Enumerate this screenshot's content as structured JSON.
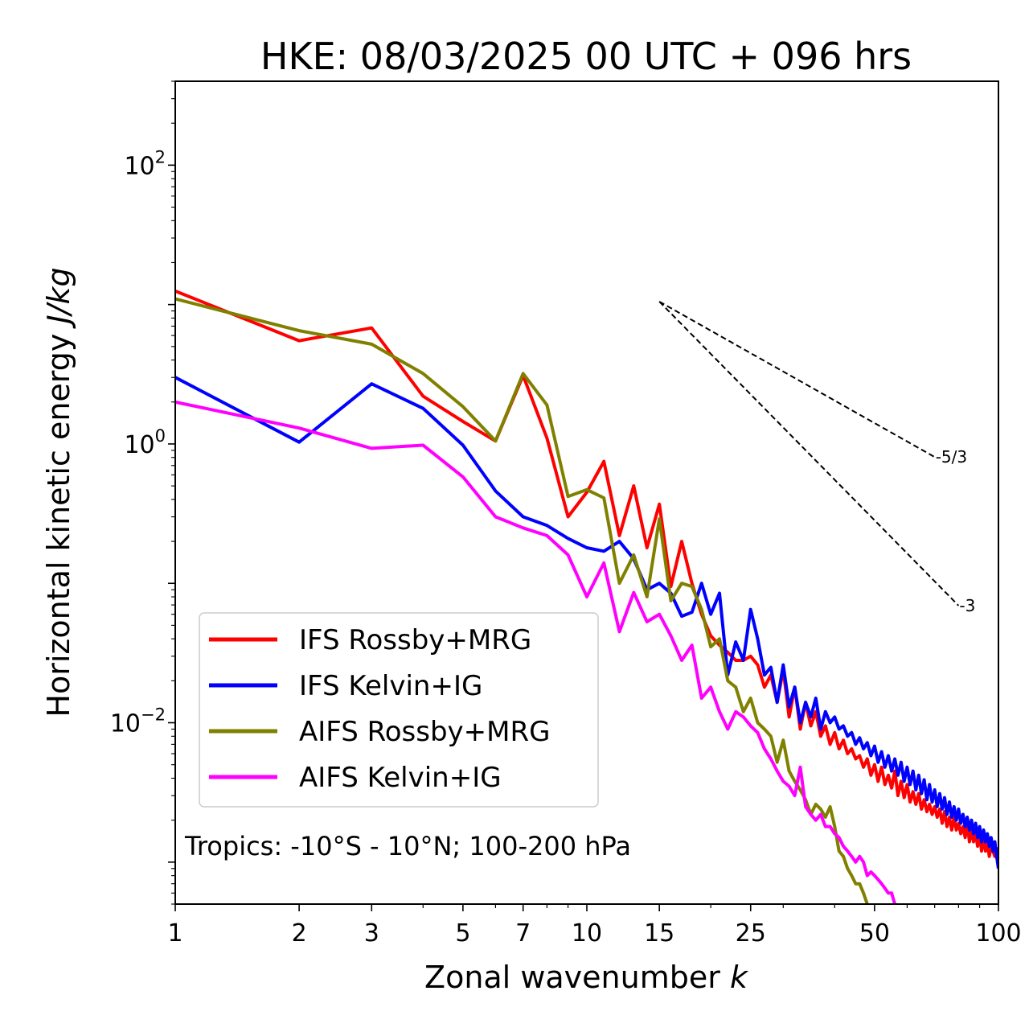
{
  "chart_data": {
    "type": "line",
    "title": "HKE: 08/03/2025 00 UTC + 096 hrs",
    "xlabel": "Zonal wavenumber",
    "xlabel_var": "k",
    "ylabel": "Horizontal kinetic energy",
    "ylabel_unit": "J/kg",
    "xscale": "log",
    "yscale": "log",
    "xlim": [
      1,
      100
    ],
    "ylim": [
      0.0005,
      400
    ],
    "xticks": [
      1,
      2,
      3,
      5,
      7,
      10,
      15,
      25,
      50,
      100
    ],
    "xtick_labels": [
      "1",
      "2",
      "3",
      "5",
      "7",
      "10",
      "15",
      "25",
      "50",
      "100"
    ],
    "yticks": [
      {
        "value": 100,
        "base": "10",
        "exp": "2"
      },
      {
        "value": 1,
        "base": "10",
        "exp": "0"
      },
      {
        "value": 0.01,
        "base": "10",
        "exp": "−2"
      }
    ],
    "legend_placement": "lower-left",
    "annotation": "Tropics: -10°S - 10°N; 100-200 hPa",
    "slopes": [
      {
        "label": "-5/3",
        "exponent": -1.6667,
        "k0": 15,
        "y0": 10.5,
        "k1": 70
      },
      {
        "label": "-3",
        "exponent": -3,
        "k0": 15,
        "y0": 10.5,
        "k1": 80
      }
    ],
    "series": [
      {
        "name": "IFS Rossby+MRG",
        "color": "#ff0000",
        "x": [
          1,
          2,
          3,
          4,
          5,
          6,
          7,
          8,
          9,
          10,
          11,
          12,
          13,
          14,
          15,
          16,
          17,
          18,
          19,
          20,
          21,
          22,
          23,
          24,
          25,
          26,
          27,
          28,
          29,
          30,
          31,
          32,
          33,
          34,
          35,
          36,
          37,
          38,
          39,
          40,
          41,
          42,
          43,
          44,
          45,
          46,
          47,
          48,
          49,
          50,
          51,
          52,
          53,
          54,
          55,
          56,
          57,
          58,
          59,
          60,
          61,
          62,
          63,
          64,
          65,
          66,
          67,
          68,
          69,
          70,
          71,
          72,
          73,
          74,
          75,
          76,
          77,
          78,
          79,
          80,
          81,
          82,
          83,
          84,
          85,
          86,
          87,
          88,
          89,
          90,
          91,
          92,
          93,
          94,
          95,
          96,
          97,
          98,
          99,
          100
        ],
        "y": [
          12.5,
          5.5,
          6.8,
          2.2,
          1.45,
          1.05,
          3.1,
          1.1,
          0.3,
          0.45,
          0.75,
          0.22,
          0.5,
          0.18,
          0.37,
          0.095,
          0.2,
          0.1,
          0.06,
          0.042,
          0.036,
          0.032,
          0.028,
          0.028,
          0.03,
          0.026,
          0.018,
          0.022,
          0.014,
          0.024,
          0.011,
          0.018,
          0.009,
          0.014,
          0.0095,
          0.012,
          0.008,
          0.0095,
          0.007,
          0.0085,
          0.0065,
          0.0075,
          0.006,
          0.0065,
          0.0055,
          0.0058,
          0.0048,
          0.0055,
          0.0042,
          0.005,
          0.0038,
          0.0048,
          0.0036,
          0.0042,
          0.0034,
          0.0045,
          0.003,
          0.0038,
          0.0029,
          0.0036,
          0.0027,
          0.0032,
          0.0026,
          0.0031,
          0.0024,
          0.0028,
          0.0023,
          0.0026,
          0.0022,
          0.0025,
          0.0021,
          0.0024,
          0.0019,
          0.0023,
          0.0018,
          0.0021,
          0.0017,
          0.0021,
          0.0017,
          0.0019,
          0.0016,
          0.0018,
          0.0015,
          0.0019,
          0.0014,
          0.0017,
          0.0014,
          0.0016,
          0.0013,
          0.0016,
          0.0012,
          0.0015,
          0.0012,
          0.0014,
          0.0011,
          0.0013,
          0.0012,
          0.0011,
          0.00125,
          0.0009
        ]
      },
      {
        "name": "IFS Kelvin+IG",
        "color": "#0000ff",
        "x": [
          1,
          2,
          3,
          4,
          5,
          6,
          7,
          8,
          9,
          10,
          11,
          12,
          13,
          14,
          15,
          16,
          17,
          18,
          19,
          20,
          21,
          22,
          23,
          24,
          25,
          26,
          27,
          28,
          29,
          30,
          31,
          32,
          33,
          34,
          35,
          36,
          37,
          38,
          39,
          40,
          41,
          42,
          43,
          44,
          45,
          46,
          47,
          48,
          49,
          50,
          51,
          52,
          53,
          54,
          55,
          56,
          57,
          58,
          59,
          60,
          61,
          62,
          63,
          64,
          65,
          66,
          67,
          68,
          69,
          70,
          71,
          72,
          73,
          74,
          75,
          76,
          77,
          78,
          79,
          80,
          81,
          82,
          83,
          84,
          85,
          86,
          87,
          88,
          89,
          90,
          91,
          92,
          93,
          94,
          95,
          96,
          97,
          98,
          99,
          100
        ],
        "y": [
          3.0,
          1.03,
          2.7,
          1.8,
          0.98,
          0.46,
          0.3,
          0.26,
          0.21,
          0.18,
          0.17,
          0.2,
          0.15,
          0.09,
          0.1,
          0.085,
          0.058,
          0.062,
          0.1,
          0.06,
          0.085,
          0.022,
          0.038,
          0.028,
          0.065,
          0.04,
          0.022,
          0.025,
          0.014,
          0.026,
          0.013,
          0.018,
          0.01,
          0.014,
          0.011,
          0.015,
          0.009,
          0.012,
          0.01,
          0.011,
          0.009,
          0.0095,
          0.008,
          0.0085,
          0.007,
          0.0078,
          0.0065,
          0.0072,
          0.0058,
          0.0068,
          0.0052,
          0.0062,
          0.0048,
          0.0058,
          0.0045,
          0.0055,
          0.0042,
          0.0052,
          0.0038,
          0.0048,
          0.0036,
          0.0045,
          0.0033,
          0.0042,
          0.0031,
          0.0039,
          0.0028,
          0.0036,
          0.0027,
          0.0033,
          0.0025,
          0.0031,
          0.0024,
          0.0029,
          0.0022,
          0.0027,
          0.0021,
          0.0025,
          0.002,
          0.0024,
          0.0019,
          0.0022,
          0.0018,
          0.0021,
          0.0017,
          0.002,
          0.0016,
          0.0019,
          0.0015,
          0.0018,
          0.0014,
          0.0017,
          0.0014,
          0.0016,
          0.0013,
          0.0015,
          0.0012,
          0.0014,
          0.0011,
          0.0009
        ]
      },
      {
        "name": "AIFS Rossby+MRG",
        "color": "#808000",
        "x": [
          1,
          2,
          3,
          4,
          5,
          6,
          7,
          8,
          9,
          10,
          11,
          12,
          13,
          14,
          15,
          16,
          17,
          18,
          19,
          20,
          21,
          22,
          23,
          24,
          25,
          26,
          27,
          28,
          29,
          30,
          31,
          32,
          33,
          34,
          35,
          36,
          37,
          38,
          39,
          40,
          41,
          42,
          43,
          44,
          45,
          46,
          47,
          48
        ],
        "y": [
          11.0,
          6.5,
          5.2,
          3.2,
          1.85,
          1.05,
          3.2,
          1.9,
          0.42,
          0.47,
          0.41,
          0.1,
          0.16,
          0.08,
          0.29,
          0.075,
          0.1,
          0.095,
          0.065,
          0.035,
          0.04,
          0.02,
          0.018,
          0.012,
          0.015,
          0.01,
          0.009,
          0.008,
          0.0052,
          0.0075,
          0.0045,
          0.0038,
          0.0033,
          0.0028,
          0.0022,
          0.0026,
          0.0024,
          0.0021,
          0.0025,
          0.0018,
          0.0012,
          0.0011,
          0.0009,
          0.0008,
          0.0007,
          0.0007,
          0.0006,
          0.0005
        ]
      },
      {
        "name": "AIFS Kelvin+IG",
        "color": "#ff00ff",
        "x": [
          1,
          2,
          3,
          4,
          5,
          6,
          7,
          8,
          9,
          10,
          11,
          12,
          13,
          14,
          15,
          16,
          17,
          18,
          19,
          20,
          21,
          22,
          23,
          24,
          25,
          26,
          27,
          28,
          29,
          30,
          31,
          32,
          33,
          34,
          35,
          36,
          37,
          38,
          39,
          40,
          41,
          42,
          43,
          44,
          45,
          46,
          47,
          48,
          49,
          50,
          51,
          52,
          53,
          54,
          55,
          56
        ],
        "y": [
          2.0,
          1.3,
          0.93,
          0.98,
          0.58,
          0.3,
          0.25,
          0.22,
          0.16,
          0.08,
          0.14,
          0.045,
          0.086,
          0.053,
          0.06,
          0.042,
          0.028,
          0.036,
          0.015,
          0.018,
          0.012,
          0.009,
          0.012,
          0.011,
          0.0095,
          0.0085,
          0.0065,
          0.0055,
          0.0045,
          0.0038,
          0.0035,
          0.003,
          0.0048,
          0.0025,
          0.0022,
          0.002,
          0.0022,
          0.0018,
          0.0018,
          0.0016,
          0.0015,
          0.0013,
          0.0012,
          0.0011,
          0.001,
          0.0011,
          0.001,
          0.0008,
          0.00085,
          0.0008,
          0.00075,
          0.0007,
          0.00065,
          0.0006,
          0.0006,
          0.0005
        ]
      }
    ]
  }
}
